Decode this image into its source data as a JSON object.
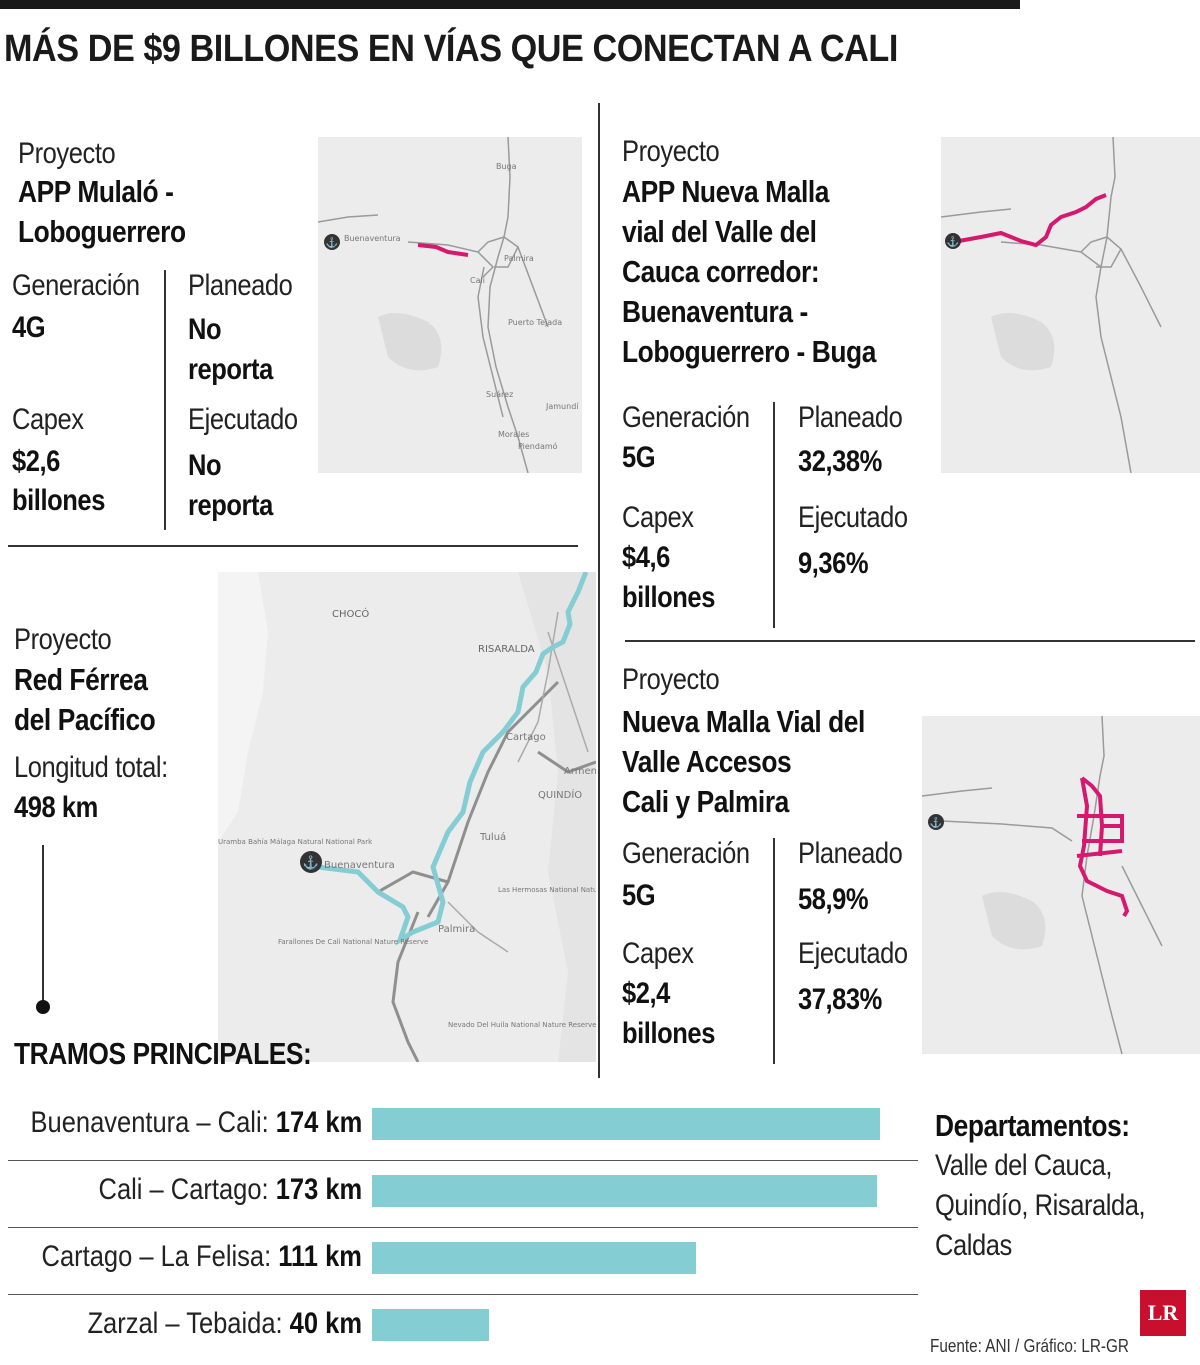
{
  "title": "MÁS DE $9 BILLONES EN VÍAS QUE CONECTAN A CALI",
  "projects": [
    {
      "label": "Proyecto",
      "name_lines": [
        "APP Mulaló -",
        "Loboguerrero"
      ],
      "generacion_label": "Generación",
      "generacion": "4G",
      "planeado_label": "Planeado",
      "planeado_lines": [
        "No",
        "reporta"
      ],
      "capex_label": "Capex",
      "capex_lines": [
        "$2,6",
        "billones"
      ],
      "ejecutado_label": "Ejecutado",
      "ejecutado_lines": [
        "No",
        "reporta"
      ]
    },
    {
      "label": "Proyecto",
      "name_lines": [
        "APP Nueva Malla",
        "vial del Valle del",
        "Cauca corredor:",
        "Buenaventura -",
        "Loboguerrero - Buga"
      ],
      "generacion_label": "Generación",
      "generacion": "5G",
      "planeado_label": "Planeado",
      "planeado": "32,38%",
      "capex_label": "Capex",
      "capex_lines": [
        "$4,6",
        "billones"
      ],
      "ejecutado_label": "Ejecutado",
      "ejecutado": "9,36%"
    },
    {
      "label": "Proyecto",
      "name_lines": [
        "Red Férrea",
        "del Pacífico"
      ],
      "longitud_label": "Longitud total:",
      "longitud": "498 km"
    },
    {
      "label": "Proyecto",
      "name_lines": [
        "Nueva Malla Vial del",
        "Valle Accesos",
        "Cali y Palmira"
      ],
      "generacion_label": "Generación",
      "generacion": "5G",
      "planeado_label": "Planeado",
      "planeado": "58,9%",
      "capex_label": "Capex",
      "capex_lines": [
        "$2,4",
        "billones"
      ],
      "ejecutado_label": "Ejecutado",
      "ejecutado": "37,83%"
    }
  ],
  "maps": {
    "small": [
      "Buga",
      "Palmira",
      "Cali",
      "Puerto Tejada",
      "Suárez",
      "Jamundí",
      "Morales",
      "Piendamó",
      "Buenaventura"
    ],
    "large": [
      "CHOCÓ",
      "RISARALDA",
      "Cartago",
      "Armenia",
      "QUINDÍO",
      "Tuluá",
      "Buenaventura",
      "Palmira",
      "Uramba Bahía Málaga Natural National Park",
      "Farallones De Cali National Nature Reserve",
      "Las Hermosas National Nature Reserve",
      "Nevado Del Huila National Nature Reserve"
    ]
  },
  "tramos_title": "TRAMOS PRINCIPALES:",
  "chart_data": {
    "type": "bar",
    "orientation": "horizontal",
    "categories": [
      "Buenaventura – Cali",
      "Cali – Cartago",
      "Cartago – La Felisa",
      "Zarzal – Tebaida"
    ],
    "values": [
      174,
      173,
      111,
      40
    ],
    "value_labels": [
      "174 km",
      "173 km",
      "111 km",
      "40 km"
    ],
    "unit": "km",
    "xlim": [
      0,
      174
    ],
    "title": "TRAMOS PRINCIPALES:",
    "bar_color": "#84cdd3"
  },
  "departamentos": {
    "title": "Departamentos:",
    "lines": [
      "Valle del Cauca,",
      "Quindío, Risaralda,",
      "Caldas"
    ]
  },
  "source": "Fuente: ANI / Gráfico: LR-GR",
  "logo": "LR",
  "colors": {
    "route_pink": "#d6186e",
    "route_teal": "#84cdd3",
    "text": "#1a1a1a"
  }
}
